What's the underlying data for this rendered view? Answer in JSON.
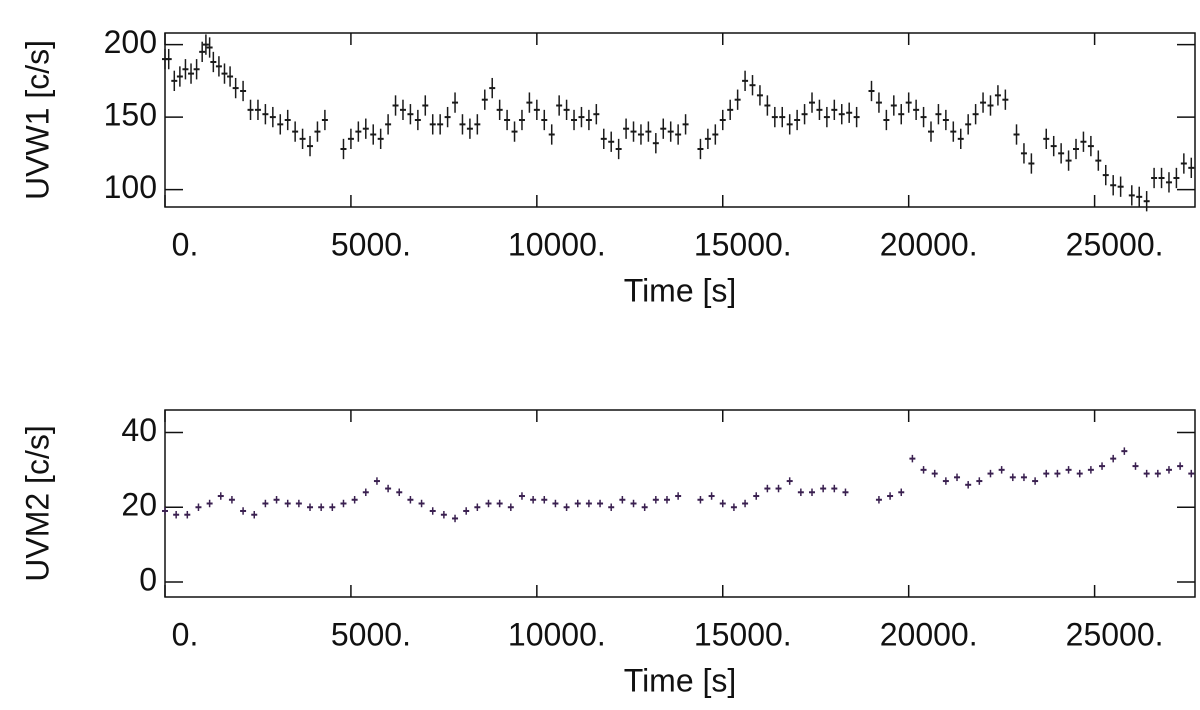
{
  "chart_data": [
    {
      "type": "scatter",
      "ylabel": "UVW1 [c/s]",
      "xlabel": "Time [s]",
      "xlim": [
        0,
        27700
      ],
      "ylim": [
        88,
        208
      ],
      "xticks": [
        {
          "value": 0,
          "label": "0."
        },
        {
          "value": 5000,
          "label": "5000."
        },
        {
          "value": 10000,
          "label": "10000."
        },
        {
          "value": 15000,
          "label": "15000."
        },
        {
          "value": 20000,
          "label": "20000."
        },
        {
          "value": 25000,
          "label": "25000."
        }
      ],
      "yticks": [
        100,
        150,
        200
      ],
      "color": "#1a1a1a",
      "error": 7,
      "x": [
        0,
        100,
        250,
        400,
        550,
        700,
        850,
        1000,
        1100,
        1200,
        1300,
        1450,
        1600,
        1750,
        1900,
        2100,
        2300,
        2500,
        2700,
        2900,
        3100,
        3300,
        3500,
        3700,
        3900,
        4100,
        4300,
        4800,
        5000,
        5200,
        5400,
        5600,
        5800,
        6000,
        6200,
        6400,
        6600,
        6800,
        7000,
        7200,
        7400,
        7600,
        7800,
        8000,
        8200,
        8400,
        8600,
        8800,
        9000,
        9200,
        9400,
        9600,
        9800,
        10000,
        10200,
        10400,
        10600,
        10800,
        11000,
        11200,
        11400,
        11600,
        11800,
        12000,
        12200,
        12400,
        12600,
        12800,
        13000,
        13200,
        13400,
        13600,
        13800,
        14000,
        14400,
        14600,
        14800,
        15000,
        15200,
        15400,
        15600,
        15800,
        16000,
        16200,
        16400,
        16600,
        16800,
        17000,
        17200,
        17400,
        17600,
        17800,
        18000,
        18200,
        18400,
        18600,
        19000,
        19200,
        19400,
        19600,
        19800,
        20000,
        20200,
        20400,
        20600,
        20800,
        21000,
        21200,
        21400,
        21600,
        21800,
        22000,
        22200,
        22400,
        22600,
        22900,
        23100,
        23300,
        23700,
        23900,
        24100,
        24300,
        24500,
        24700,
        24900,
        25100,
        25300,
        25500,
        25700,
        26000,
        26200,
        26400,
        26600,
        26800,
        27000,
        27200,
        27400,
        27600
      ],
      "values": [
        190,
        190,
        175,
        178,
        183,
        180,
        183,
        195,
        200,
        198,
        188,
        185,
        180,
        178,
        170,
        168,
        155,
        155,
        152,
        150,
        145,
        148,
        140,
        135,
        130,
        140,
        148,
        128,
        135,
        140,
        142,
        138,
        135,
        145,
        158,
        155,
        152,
        148,
        158,
        145,
        145,
        150,
        160,
        145,
        142,
        145,
        162,
        170,
        155,
        148,
        140,
        148,
        160,
        155,
        148,
        138,
        158,
        155,
        148,
        150,
        148,
        152,
        135,
        133,
        128,
        142,
        140,
        138,
        140,
        132,
        142,
        140,
        138,
        145,
        128,
        135,
        138,
        148,
        155,
        162,
        175,
        172,
        165,
        158,
        150,
        150,
        145,
        148,
        152,
        160,
        155,
        150,
        155,
        152,
        153,
        150,
        168,
        160,
        148,
        158,
        152,
        160,
        155,
        150,
        140,
        152,
        148,
        140,
        135,
        145,
        152,
        160,
        158,
        165,
        162,
        138,
        125,
        118,
        135,
        130,
        125,
        120,
        128,
        133,
        130,
        120,
        110,
        103,
        102,
        96,
        95,
        92,
        108,
        108,
        105,
        108,
        118,
        115
      ]
    },
    {
      "type": "scatter",
      "ylabel": "UVM2 [c/s]",
      "xlabel": "Time [s]",
      "xlim": [
        0,
        27700
      ],
      "ylim": [
        -4,
        46
      ],
      "xticks": [
        {
          "value": 0,
          "label": "0."
        },
        {
          "value": 5000,
          "label": "5000."
        },
        {
          "value": 10000,
          "label": "10000."
        },
        {
          "value": 15000,
          "label": "15000."
        },
        {
          "value": 20000,
          "label": "20000."
        },
        {
          "value": 25000,
          "label": "25000."
        }
      ],
      "yticks": [
        0,
        20,
        40
      ],
      "color": "#3a2050",
      "error": 1,
      "x": [
        0,
        300,
        600,
        900,
        1200,
        1500,
        1800,
        2100,
        2400,
        2700,
        3000,
        3300,
        3600,
        3900,
        4200,
        4500,
        4800,
        5100,
        5400,
        5700,
        6000,
        6300,
        6600,
        6900,
        7200,
        7500,
        7800,
        8100,
        8400,
        8700,
        9000,
        9300,
        9600,
        9900,
        10200,
        10500,
        10800,
        11100,
        11400,
        11700,
        12000,
        12300,
        12600,
        12900,
        13200,
        13500,
        13800,
        14400,
        14700,
        15000,
        15300,
        15600,
        15900,
        16200,
        16500,
        16800,
        17100,
        17400,
        17700,
        18000,
        18300,
        19200,
        19500,
        19800,
        20100,
        20400,
        20700,
        21000,
        21300,
        21600,
        21900,
        22200,
        22500,
        22800,
        23100,
        23400,
        23700,
        24000,
        24300,
        24600,
        24900,
        25200,
        25500,
        25800,
        26100,
        26400,
        26700,
        27000,
        27300,
        27600
      ],
      "values": [
        19,
        18,
        18,
        20,
        21,
        23,
        22,
        19,
        18,
        21,
        22,
        21,
        21,
        20,
        20,
        20,
        21,
        22,
        24,
        27,
        25,
        24,
        22,
        21,
        19,
        18,
        17,
        19,
        20,
        21,
        21,
        20,
        23,
        22,
        22,
        21,
        20,
        21,
        21,
        21,
        20,
        22,
        21,
        20,
        22,
        22,
        23,
        22,
        23,
        21,
        20,
        21,
        23,
        25,
        25,
        27,
        24,
        24,
        25,
        25,
        24,
        22,
        23,
        24,
        33,
        30,
        29,
        27,
        28,
        26,
        27,
        29,
        30,
        28,
        28,
        27,
        29,
        29,
        30,
        29,
        30,
        31,
        33,
        35,
        31,
        29,
        29,
        30,
        31,
        29
      ]
    }
  ]
}
